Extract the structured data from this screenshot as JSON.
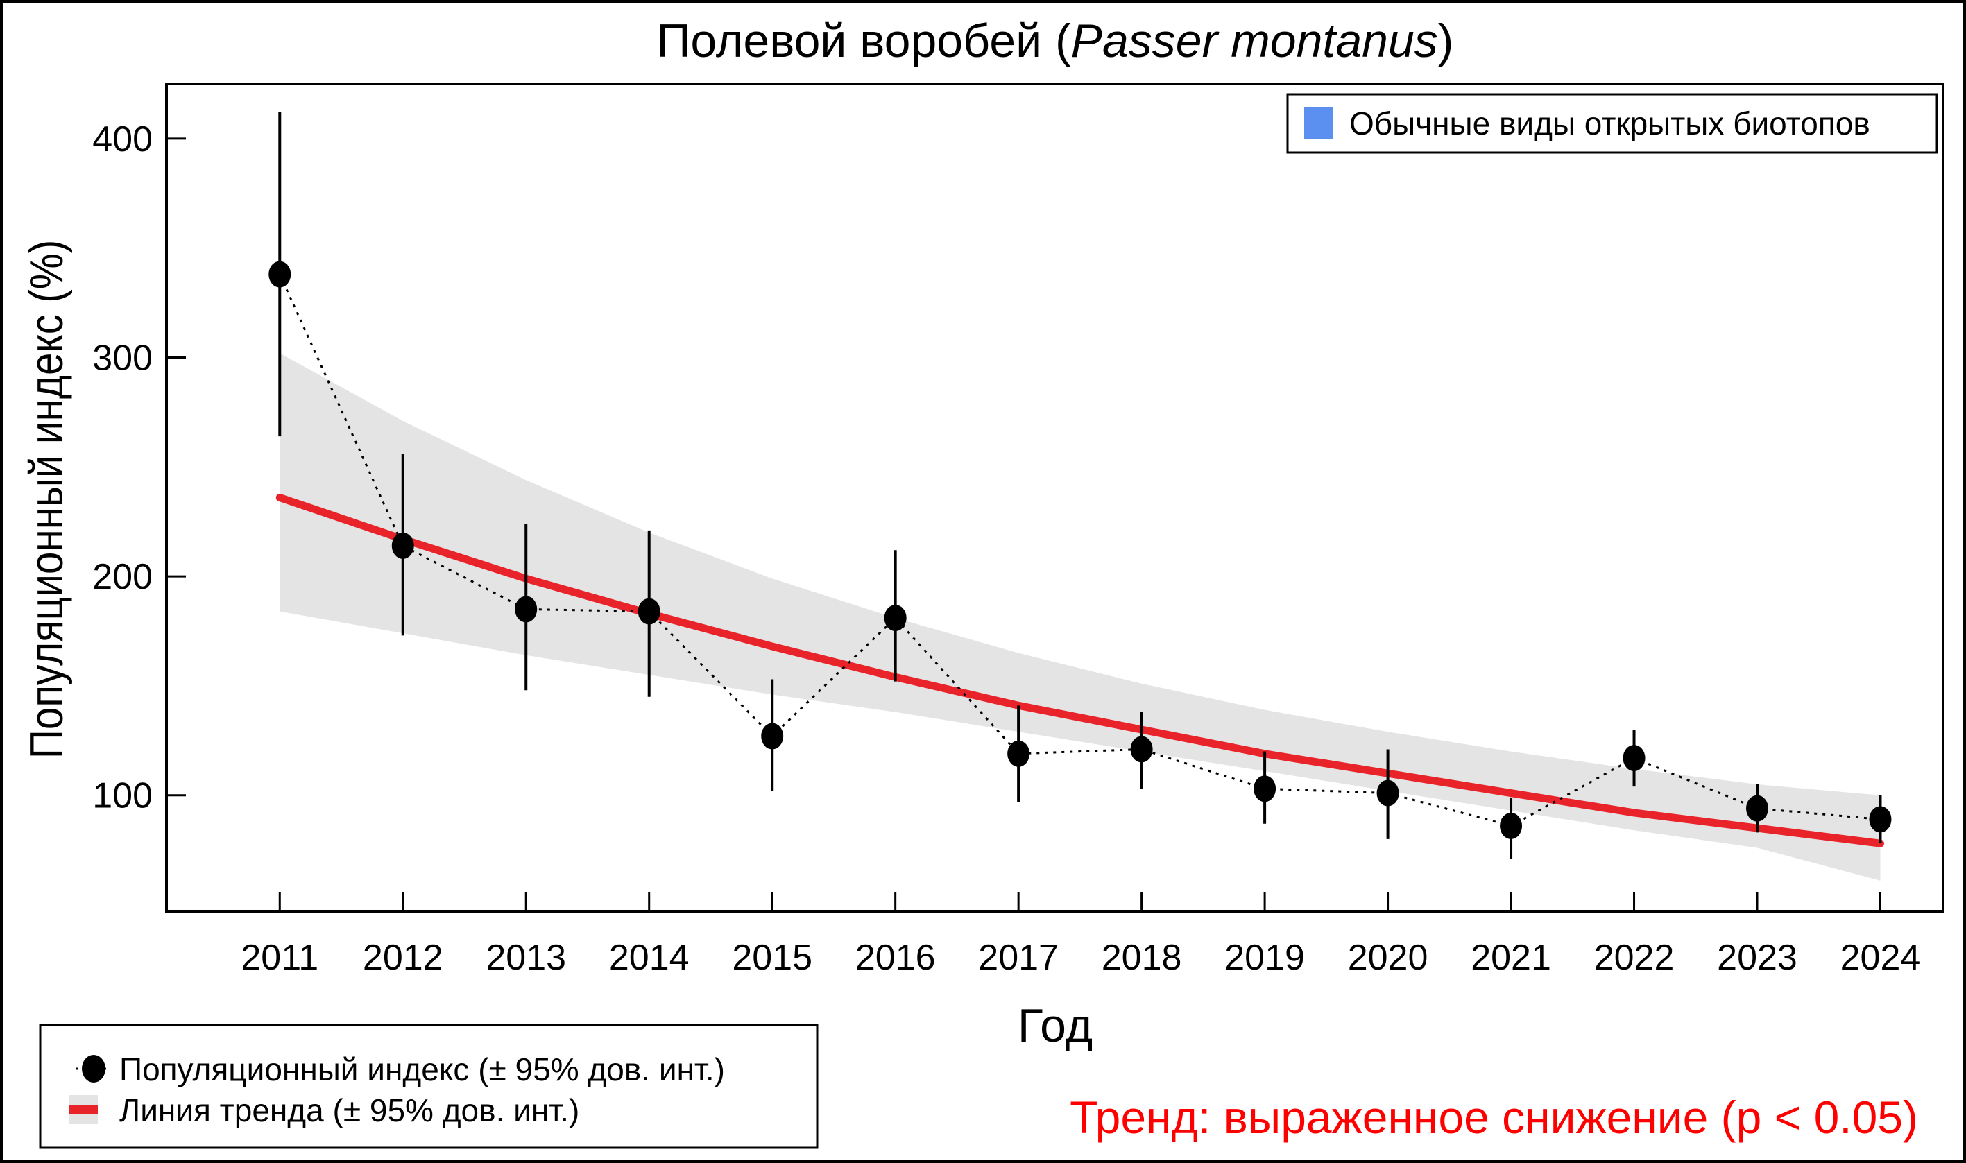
{
  "colors": {
    "points": "#000000",
    "trend_line": "#e8232a",
    "trend_band": "#e4e4e4",
    "group_swatch": "#5b8ff0",
    "trend_note": "#ff0000"
  },
  "chart_data": {
    "type": "line",
    "title_plain": "Полевой воробей (",
    "title_italic": "Passer montanus",
    "title_close": ")",
    "xlabel": "Год",
    "ylabel": "Популяционный индекс (%)",
    "x": [
      2011,
      2012,
      2013,
      2014,
      2015,
      2016,
      2017,
      2018,
      2019,
      2020,
      2021,
      2022,
      2023,
      2024
    ],
    "x_tick_labels": [
      "2011",
      "2012",
      "2013",
      "2014",
      "2015",
      "2016",
      "2017",
      "2018",
      "2019",
      "2020",
      "2021",
      "2022",
      "2023",
      "2024"
    ],
    "y_ticks": [
      100,
      200,
      300,
      400
    ],
    "y_tick_labels": [
      "100",
      "200",
      "300",
      "400"
    ],
    "ylim": [
      47,
      425
    ],
    "xlim": [
      2010.08,
      2024.51
    ],
    "grid": false,
    "series": [
      {
        "name": "Популяционный индекс (± 95% дов. инт.)",
        "style": "points-dotted",
        "values": [
          338,
          214,
          185,
          184,
          127,
          181,
          119,
          121,
          103,
          101,
          86,
          117,
          94,
          89
        ],
        "ci_upper": [
          412,
          256,
          224,
          221,
          153,
          212,
          141,
          138,
          120,
          121,
          99,
          130,
          105,
          100
        ],
        "ci_lower": [
          264,
          173,
          148,
          145,
          102,
          152,
          97,
          103,
          87,
          80,
          71,
          104,
          83,
          78
        ]
      },
      {
        "name": "Линия тренда (± 95% дов. инт.)",
        "style": "trend",
        "values": [
          236,
          217,
          199,
          183,
          168,
          154,
          141,
          130,
          119,
          110,
          101,
          92,
          85,
          78
        ],
        "ci_upper": [
          302,
          271,
          244,
          220,
          199,
          181,
          165,
          151,
          139,
          129,
          120,
          112,
          105,
          100
        ],
        "ci_lower": [
          184,
          174,
          164,
          155,
          146,
          138,
          129,
          120,
          111,
          102,
          93,
          84,
          76,
          61
        ]
      }
    ],
    "legend": {
      "placement": "bottom-left",
      "entries": [
        "Популяционный индекс (± 95% дов. инт.)",
        "Линия тренда (± 95% дов. инт.)"
      ]
    },
    "group_legend": {
      "placement": "top-right",
      "label": "Обычные виды открытых биотопов"
    },
    "annotation": "Тренд: выраженное снижение (p < 0.05)"
  }
}
